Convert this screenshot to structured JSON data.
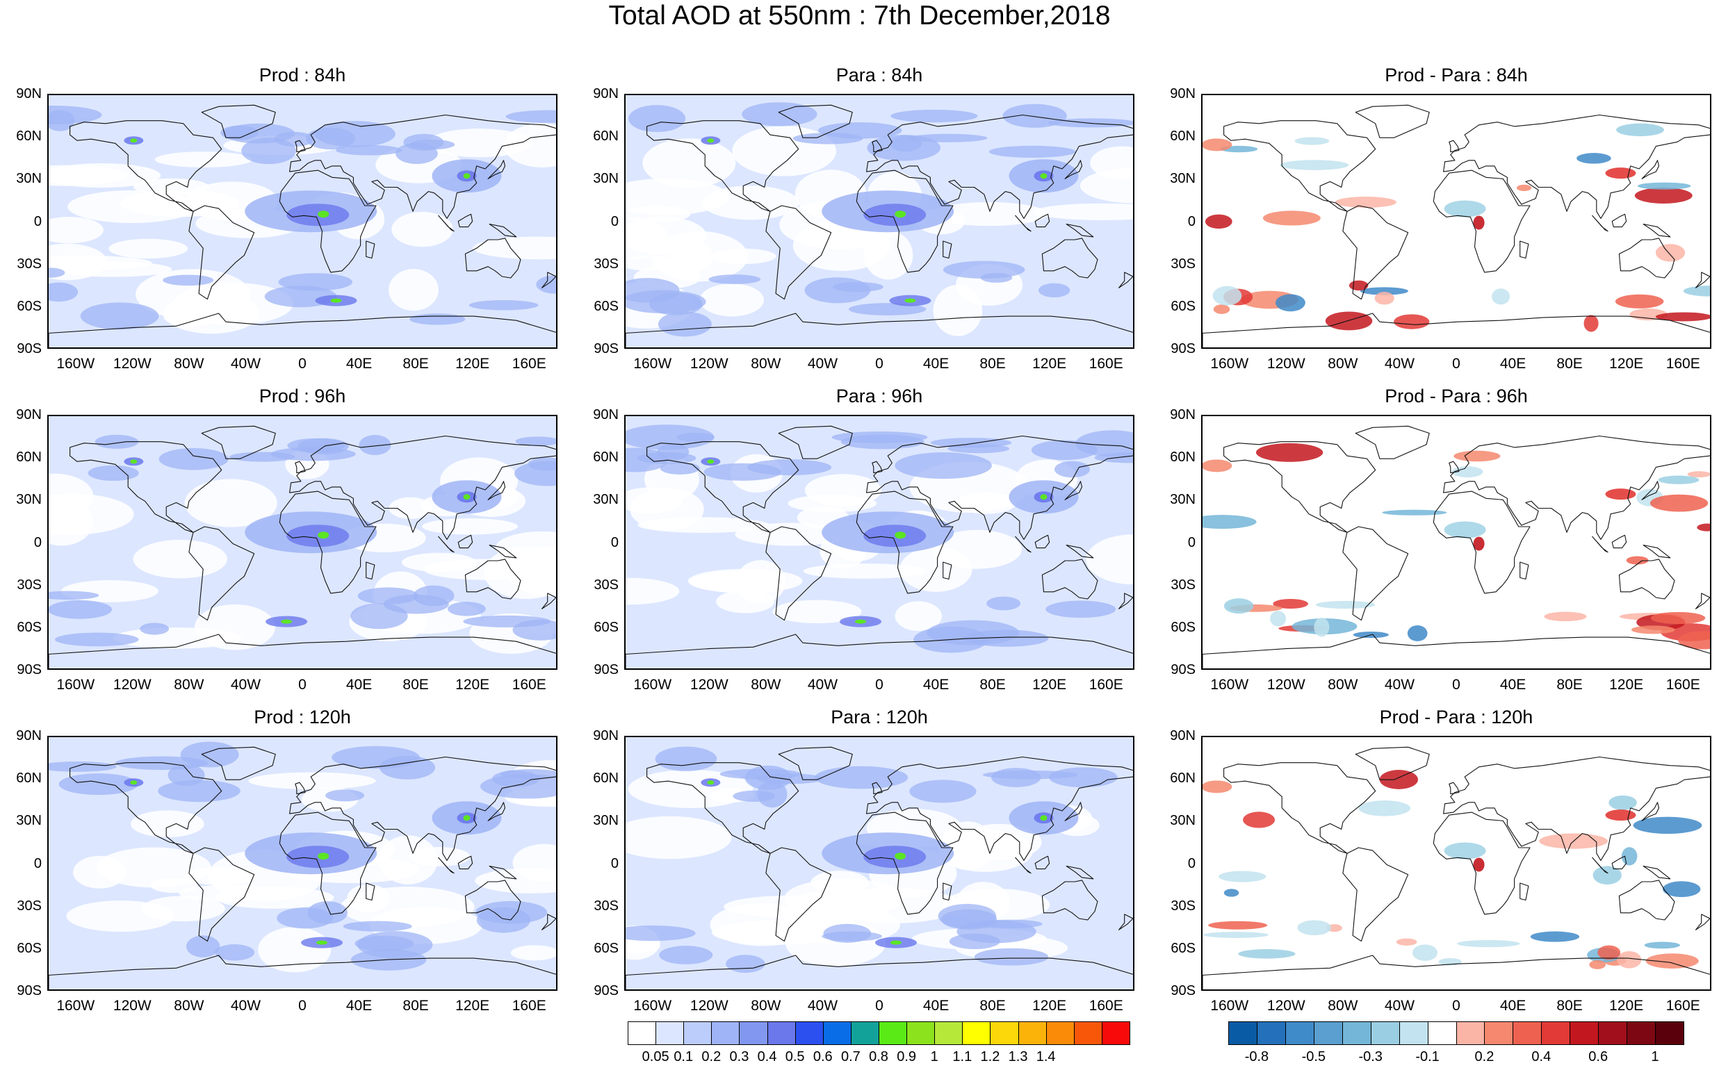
{
  "title": "Total AOD at 550nm : 7th December,2018",
  "lat_labels": [
    "90N",
    "60N",
    "30N",
    "0",
    "30S",
    "60S",
    "90S"
  ],
  "lon_labels": [
    "160W",
    "120W",
    "80W",
    "40W",
    "0",
    "40E",
    "80E",
    "120E",
    "160E"
  ],
  "panels": [
    {
      "title": "Prod : 84h",
      "kind": "aod",
      "seed": 11
    },
    {
      "title": "Para : 84h",
      "kind": "aod",
      "seed": 23
    },
    {
      "title": "Prod - Para : 84h",
      "kind": "diff",
      "seed": 37
    },
    {
      "title": "Prod : 96h",
      "kind": "aod",
      "seed": 41
    },
    {
      "title": "Para : 96h",
      "kind": "aod",
      "seed": 53
    },
    {
      "title": "Prod - Para : 96h",
      "kind": "diff",
      "seed": 67
    },
    {
      "title": "Prod : 120h",
      "kind": "aod",
      "seed": 71
    },
    {
      "title": "Para : 120h",
      "kind": "aod",
      "seed": 83
    },
    {
      "title": "Prod - Para : 120h",
      "kind": "diff",
      "seed": 97
    }
  ],
  "aod_colorbar": {
    "colors": [
      "#ffffff",
      "#dce6ff",
      "#bccdfb",
      "#9fb4f6",
      "#8297f0",
      "#6a78ec",
      "#2c50f0",
      "#0a6de8",
      "#13a29a",
      "#5aeb17",
      "#8ce21d",
      "#b6e83a",
      "#ffff00",
      "#fcd80a",
      "#fbb30a",
      "#f98b08",
      "#f8570a",
      "#f80a0a"
    ],
    "labels": [
      "0.05",
      "0.1",
      "0.2",
      "0.3",
      "0.4",
      "0.5",
      "0.6",
      "0.7",
      "0.8",
      "0.9",
      "1",
      "1.1",
      "1.2",
      "1.3",
      "1.4"
    ]
  },
  "diff_colorbar": {
    "colors": [
      "#0a5ba5",
      "#2470ba",
      "#3f8ac8",
      "#5a9fcf",
      "#74b6d8",
      "#9acfe3",
      "#c2e3ef",
      "#ffffff",
      "#fbb5a7",
      "#f5886f",
      "#ee6150",
      "#e23a36",
      "#c3171f",
      "#a10f1c",
      "#7d0814",
      "#5a000c"
    ],
    "labels": [
      "-0.8",
      "-0.5",
      "-0.3",
      "-0.1",
      "0.2",
      "0.4",
      "0.6",
      "1"
    ]
  }
}
